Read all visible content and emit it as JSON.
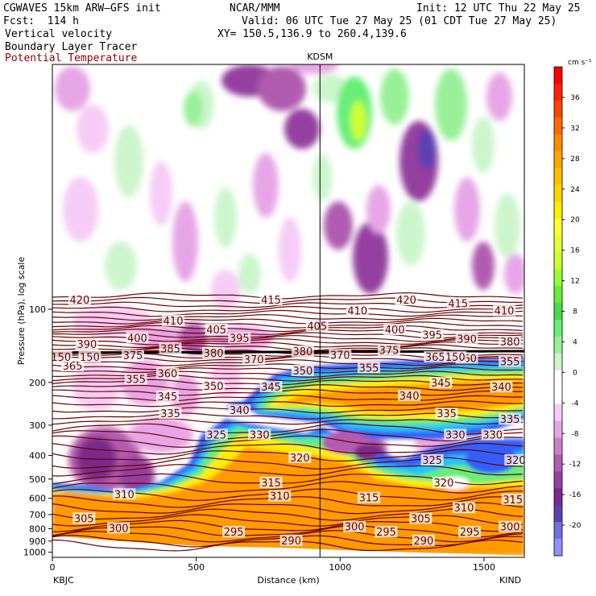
{
  "header": {
    "model": "CGWAVES 15km ARW–GFS init",
    "fcst": "Fcst:  114 h",
    "field1": "Vertical velocity",
    "field2": "Boundary Layer Tracer",
    "field3": "Potential Temperature",
    "org": "NCAR/MMM",
    "init": "Init: 12 UTC Thu 22 May 25",
    "valid": "Valid: 06 UTC Tue 27 May 25 (01 CDT Tue 27 May 25)",
    "xy": "XY= 150.5,136.9 to 260.4,139.6",
    "station_mid": "KDSM"
  },
  "chart_data": {
    "type": "heatmap",
    "title": "",
    "xlabel": "Distance (km)",
    "ylabel": "Pressure (hPa), log scale",
    "x_ticks": [
      0,
      500,
      1000,
      1500
    ],
    "y_ticks": [
      100,
      200,
      300,
      400,
      500,
      600,
      700,
      800,
      900,
      1000
    ],
    "xlim": [
      0,
      1640
    ],
    "ylim": [
      1050,
      10
    ],
    "y_scale": "log",
    "x_end_labels": {
      "left": "KBJC",
      "right": "KIND"
    },
    "kdsm_distance_km": 930,
    "colorbar": {
      "unit": "cm s⁻¹",
      "tick_labels": [
        "36",
        "32",
        "28",
        "24",
        "20",
        "16",
        "12",
        "8",
        "4",
        "0",
        "-4",
        "-8",
        "-12",
        "-16",
        "-20"
      ],
      "colors": [
        "#ff0000",
        "#ff2200",
        "#ff4400",
        "#ff6a00",
        "#ff8c00",
        "#ffa500",
        "#ffbf00",
        "#ffd700",
        "#ffee00",
        "#ffff33",
        "#e6ff33",
        "#ccff33",
        "#99ff33",
        "#66ee33",
        "#44dd44",
        "#66ee77",
        "#99f099",
        "#ccf5cc",
        "#ffffff",
        "#ffffff",
        "#f5ccf5",
        "#e6a6e6",
        "#cc80cc",
        "#b05cb0",
        "#9440a0",
        "#7a2a8a",
        "#6040b0",
        "#7070e0",
        "#9090ff"
      ]
    },
    "theta_contours": [
      {
        "value": "420",
        "x": 95,
        "p": 92
      },
      {
        "value": "415",
        "x": 760,
        "p": 92
      },
      {
        "value": "410",
        "x": 420,
        "p": 112
      },
      {
        "value": "405",
        "x": 570,
        "p": 122
      },
      {
        "value": "400",
        "x": 295,
        "p": 132
      },
      {
        "value": "395",
        "x": 650,
        "p": 132
      },
      {
        "value": "390",
        "x": 120,
        "p": 140
      },
      {
        "value": "385",
        "x": 410,
        "p": 146
      },
      {
        "value": "380",
        "x": 560,
        "p": 152
      },
      {
        "value": "375",
        "x": 280,
        "p": 156
      },
      {
        "value": "370",
        "x": 700,
        "p": 162
      },
      {
        "value": "365",
        "x": 70,
        "p": 172
      },
      {
        "value": "360",
        "x": 400,
        "p": 185
      },
      {
        "value": "355",
        "x": 290,
        "p": 195
      },
      {
        "value": "350",
        "x": 560,
        "p": 208
      },
      {
        "value": "345",
        "x": 400,
        "p": 230
      },
      {
        "value": "345",
        "x": 760,
        "p": 210
      },
      {
        "value": "340",
        "x": 650,
        "p": 262
      },
      {
        "value": "335",
        "x": 410,
        "p": 270
      },
      {
        "value": "330",
        "x": 720,
        "p": 330
      },
      {
        "value": "325",
        "x": 570,
        "p": 330
      },
      {
        "value": "320",
        "x": 860,
        "p": 410
      },
      {
        "value": "315",
        "x": 760,
        "p": 520
      },
      {
        "value": "310",
        "x": 250,
        "p": 580
      },
      {
        "value": "310",
        "x": 790,
        "p": 590
      },
      {
        "value": "305",
        "x": 110,
        "p": 730
      },
      {
        "value": "300",
        "x": 230,
        "p": 800
      },
      {
        "value": "295",
        "x": 630,
        "p": 830
      },
      {
        "value": "290",
        "x": 830,
        "p": 900
      },
      {
        "value": "420",
        "x": 1230,
        "p": 92
      },
      {
        "value": "415",
        "x": 1410,
        "p": 95
      },
      {
        "value": "410",
        "x": 1060,
        "p": 102
      },
      {
        "value": "410",
        "x": 1570,
        "p": 102
      },
      {
        "value": "405",
        "x": 920,
        "p": 118
      },
      {
        "value": "400",
        "x": 1190,
        "p": 122
      },
      {
        "value": "395",
        "x": 1320,
        "p": 128
      },
      {
        "value": "390",
        "x": 1440,
        "p": 133
      },
      {
        "value": "380",
        "x": 870,
        "p": 150
      },
      {
        "value": "380",
        "x": 1590,
        "p": 137
      },
      {
        "value": "375",
        "x": 1170,
        "p": 148
      },
      {
        "value": "370",
        "x": 1000,
        "p": 155
      },
      {
        "value": "365",
        "x": 1330,
        "p": 158
      },
      {
        "value": "360",
        "x": 1440,
        "p": 160
      },
      {
        "value": "355",
        "x": 1100,
        "p": 175
      },
      {
        "value": "355",
        "x": 1590,
        "p": 165
      },
      {
        "value": "350",
        "x": 870,
        "p": 180
      },
      {
        "value": "345",
        "x": 1350,
        "p": 202
      },
      {
        "value": "340",
        "x": 1240,
        "p": 228
      },
      {
        "value": "340",
        "x": 1560,
        "p": 210
      },
      {
        "value": "335",
        "x": 1370,
        "p": 270
      },
      {
        "value": "335",
        "x": 1590,
        "p": 285
      },
      {
        "value": "330",
        "x": 1400,
        "p": 330
      },
      {
        "value": "330",
        "x": 1530,
        "p": 330
      },
      {
        "value": "325",
        "x": 1320,
        "p": 420
      },
      {
        "value": "320",
        "x": 1610,
        "p": 420
      },
      {
        "value": "320",
        "x": 1360,
        "p": 520
      },
      {
        "value": "315",
        "x": 1100,
        "p": 600
      },
      {
        "value": "315",
        "x": 1600,
        "p": 610
      },
      {
        "value": "310",
        "x": 1430,
        "p": 660
      },
      {
        "value": "305",
        "x": 1280,
        "p": 730
      },
      {
        "value": "300",
        "x": 1050,
        "p": 790
      },
      {
        "value": "300",
        "x": 1590,
        "p": 790
      },
      {
        "value": "295",
        "x": 1160,
        "p": 830
      },
      {
        "value": "295",
        "x": 1450,
        "p": 830
      },
      {
        "value": "290",
        "x": 1290,
        "p": 900
      },
      {
        "value": "150",
        "x": 30,
        "p": 158
      },
      {
        "value": "150",
        "x": 130,
        "p": 158
      },
      {
        "value": "150",
        "x": 1400,
        "p": 158
      }
    ]
  }
}
